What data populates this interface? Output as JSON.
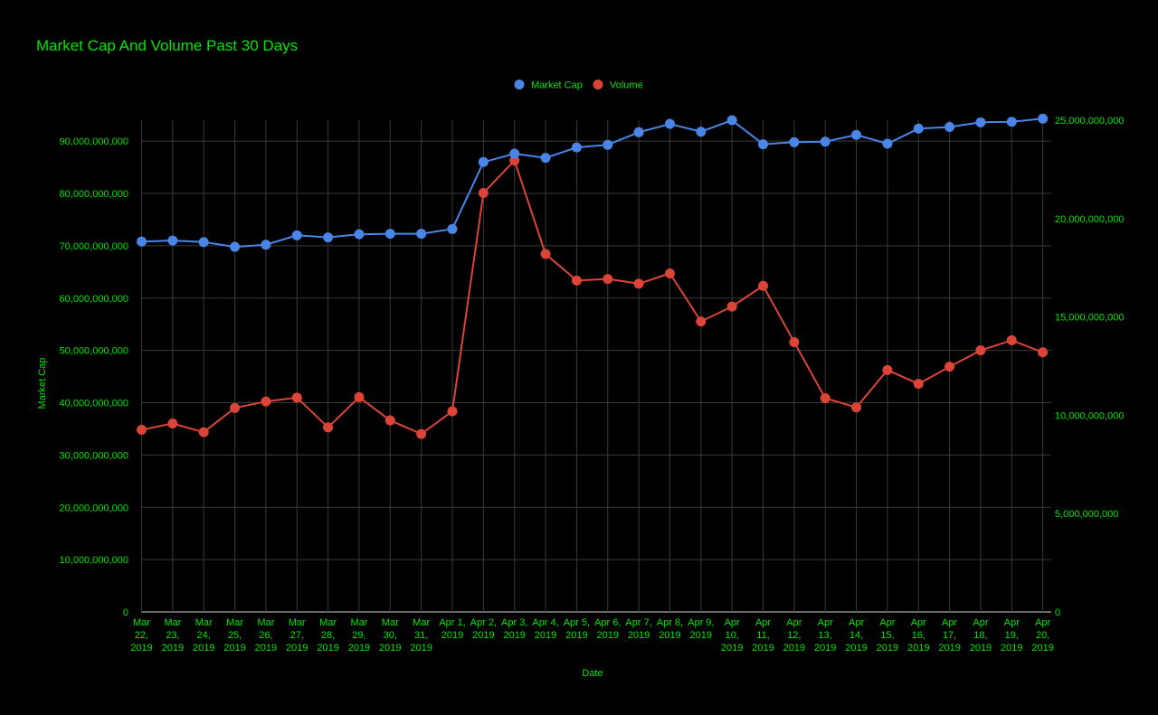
{
  "colors": {
    "background": "#000000",
    "text": "#00e600",
    "grid": "#3a3a3a",
    "market_cap": "#4a86e8",
    "volume": "#db4437"
  },
  "chart_data": {
    "type": "line",
    "title": "Market Cap And Volume Past 30 Days",
    "xlabel": "Date",
    "ylabel": "Market Cap",
    "ylabel_right": "",
    "legend_position": "top",
    "grid": true,
    "ylim_left": [
      0,
      94000000000
    ],
    "ylim_right": [
      0,
      25000000000
    ],
    "yticks_left": [
      "0",
      "10,000,000,000",
      "20,000,000,000",
      "30,000,000,000",
      "40,000,000,000",
      "50,000,000,000",
      "60,000,000,000",
      "70,000,000,000",
      "80,000,000,000",
      "90,000,000,000"
    ],
    "yticks_right": [
      "0",
      "5,000,000,000",
      "10,000,000,000",
      "15,000,000,000",
      "20,000,000,000",
      "25,000,000,000"
    ],
    "categories": [
      "Mar 22, 2019",
      "Mar 23, 2019",
      "Mar 24, 2019",
      "Mar 25, 2019",
      "Mar 26, 2019",
      "Mar 27, 2019",
      "Mar 28, 2019",
      "Mar 29, 2019",
      "Mar 30, 2019",
      "Mar 31, 2019",
      "Apr 1, 2019",
      "Apr 2, 2019",
      "Apr 3, 2019",
      "Apr 4, 2019",
      "Apr 5, 2019",
      "Apr 6, 2019",
      "Apr 7, 2019",
      "Apr 8, 2019",
      "Apr 9, 2019",
      "Apr 10, 2019",
      "Apr 11, 2019",
      "Apr 12, 2019",
      "Apr 13, 2019",
      "Apr 14, 2019",
      "Apr 15, 2019",
      "Apr 16, 2019",
      "Apr 17, 2019",
      "Apr 18, 2019",
      "Apr 19, 2019",
      "Apr 20, 2019"
    ],
    "category_lines": [
      [
        "Mar",
        "22,",
        "2019"
      ],
      [
        "Mar",
        "23,",
        "2019"
      ],
      [
        "Mar",
        "24,",
        "2019"
      ],
      [
        "Mar",
        "25,",
        "2019"
      ],
      [
        "Mar",
        "26,",
        "2019"
      ],
      [
        "Mar",
        "27,",
        "2019"
      ],
      [
        "Mar",
        "28,",
        "2019"
      ],
      [
        "Mar",
        "29,",
        "2019"
      ],
      [
        "Mar",
        "30,",
        "2019"
      ],
      [
        "Mar",
        "31,",
        "2019"
      ],
      [
        "Apr 1,",
        "2019"
      ],
      [
        "Apr 2,",
        "2019"
      ],
      [
        "Apr 3,",
        "2019"
      ],
      [
        "Apr 4,",
        "2019"
      ],
      [
        "Apr 5,",
        "2019"
      ],
      [
        "Apr 6,",
        "2019"
      ],
      [
        "Apr 7,",
        "2019"
      ],
      [
        "Apr 8,",
        "2019"
      ],
      [
        "Apr 9,",
        "2019"
      ],
      [
        "Apr",
        "10,",
        "2019"
      ],
      [
        "Apr",
        "11,",
        "2019"
      ],
      [
        "Apr",
        "12,",
        "2019"
      ],
      [
        "Apr",
        "13,",
        "2019"
      ],
      [
        "Apr",
        "14,",
        "2019"
      ],
      [
        "Apr",
        "15,",
        "2019"
      ],
      [
        "Apr",
        "16,",
        "2019"
      ],
      [
        "Apr",
        "17,",
        "2019"
      ],
      [
        "Apr",
        "18,",
        "2019"
      ],
      [
        "Apr",
        "19,",
        "2019"
      ],
      [
        "Apr",
        "20,",
        "2019"
      ]
    ],
    "series": [
      {
        "name": "Market Cap",
        "axis": "left",
        "values": [
          70800000000,
          71000000000,
          70700000000,
          69800000000,
          70200000000,
          72000000000,
          71600000000,
          72200000000,
          72300000000,
          72300000000,
          73200000000,
          86000000000,
          87600000000,
          86800000000,
          88800000000,
          89300000000,
          91700000000,
          93300000000,
          91800000000,
          94000000000,
          89400000000,
          89800000000,
          89900000000,
          91200000000,
          89500000000,
          92400000000,
          92700000000,
          93600000000,
          93700000000,
          94300000000
        ]
      },
      {
        "name": "Volume",
        "axis": "right",
        "values": [
          9260000000,
          9580000000,
          9140000000,
          10370000000,
          10700000000,
          10900000000,
          9380000000,
          10920000000,
          9740000000,
          9050000000,
          10200000000,
          21300000000,
          22950000000,
          18200000000,
          16850000000,
          16930000000,
          16690000000,
          17210000000,
          14770000000,
          15530000000,
          16580000000,
          13720000000,
          10870000000,
          10400000000,
          12300000000,
          11600000000,
          12470000000,
          13300000000,
          13810000000,
          13200000000
        ]
      }
    ]
  }
}
